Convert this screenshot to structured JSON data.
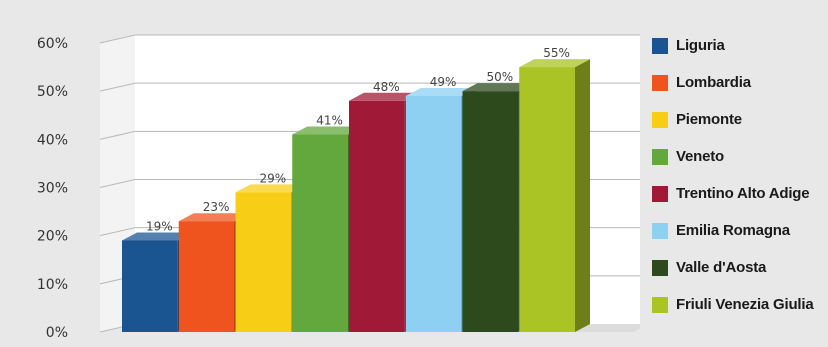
{
  "chart_data": {
    "type": "bar",
    "title": "",
    "xlabel": "",
    "ylabel": "",
    "ylim": [
      0,
      60
    ],
    "y_ticks": [
      "0%",
      "10%",
      "20%",
      "30%",
      "40%",
      "50%",
      "60%"
    ],
    "y_tick_values": [
      0,
      10,
      20,
      30,
      40,
      50,
      60
    ],
    "grid": true,
    "legend_position": "right",
    "style": "3d",
    "categories": [
      "Liguria",
      "Lombardia",
      "Piemonte",
      "Veneto",
      "Trentino Alto Adige",
      "Emilia Romagna",
      "Valle d'Aosta",
      "Friuli Venezia Giulia"
    ],
    "values": [
      19,
      23,
      29,
      41,
      48,
      49,
      50,
      55
    ],
    "data_labels": [
      "19%",
      "23%",
      "29%",
      "41%",
      "48%",
      "49%",
      "50%",
      "55%"
    ],
    "colors": [
      "#1a5592",
      "#f0541e",
      "#f7cd16",
      "#63a83c",
      "#a01a37",
      "#8ed0f2",
      "#2d4a1d",
      "#a9c424"
    ]
  }
}
